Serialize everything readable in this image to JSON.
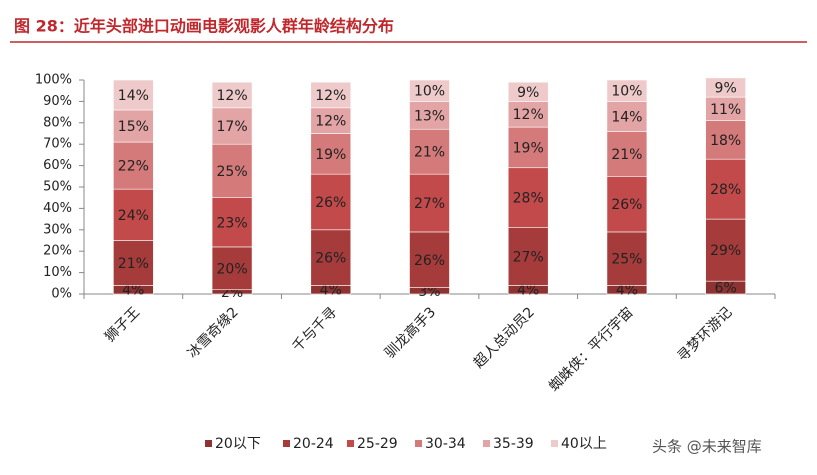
{
  "chart_data": {
    "type": "stacked-bar",
    "title": "图 28：近年头部进口动画电影观影人群年龄结构分布",
    "watermark": "头条 @未来智库",
    "categories": [
      "狮子王",
      "冰雪奇缘2",
      "千与千寻",
      "驯龙高手3",
      "超人总动员2",
      "蜘蛛侠：平行宇宙",
      "寻梦环游记"
    ],
    "series": [
      {
        "name": "20以下",
        "color": "#8e3232",
        "values": [
          4,
          2,
          4,
          3,
          4,
          4,
          6
        ],
        "value_labels": [
          "4%",
          "2%",
          "4%",
          "3%",
          "4%",
          "4%",
          "6%"
        ]
      },
      {
        "name": "20-24",
        "color": "#a63b3b",
        "values": [
          21,
          20,
          26,
          26,
          27,
          25,
          29
        ],
        "value_labels": [
          "21%",
          "20%",
          "26%",
          "26%",
          "27%",
          "25%",
          "29%"
        ]
      },
      {
        "name": "25-29",
        "color": "#c24a4a",
        "values": [
          24,
          23,
          26,
          27,
          28,
          26,
          28
        ],
        "value_labels": [
          "24%",
          "23%",
          "26%",
          "27%",
          "28%",
          "26%",
          "28%"
        ]
      },
      {
        "name": "30-34",
        "color": "#d47a7a",
        "values": [
          22,
          25,
          19,
          21,
          19,
          21,
          18
        ],
        "value_labels": [
          "22%",
          "25%",
          "19%",
          "21%",
          "19%",
          "21%",
          "18%"
        ]
      },
      {
        "name": "35-39",
        "color": "#e2a4a4",
        "values": [
          15,
          17,
          12,
          13,
          12,
          14,
          11
        ],
        "value_labels": [
          "15%",
          "17%",
          "12%",
          "13%",
          "12%",
          "14%",
          "11%"
        ]
      },
      {
        "name": "40以上",
        "color": "#eecaca",
        "values": [
          14,
          12,
          12,
          10,
          9,
          10,
          9
        ],
        "value_labels": [
          "14%",
          "12%",
          "12%",
          "10%",
          "9%",
          "10%",
          "9%"
        ]
      }
    ],
    "ylim": [
      0,
      100
    ],
    "yticks": [
      {
        "value": 0,
        "label": "0%"
      },
      {
        "value": 10,
        "label": "10%"
      },
      {
        "value": 20,
        "label": "20%"
      },
      {
        "value": 30,
        "label": "30%"
      },
      {
        "value": 40,
        "label": "40%"
      },
      {
        "value": 50,
        "label": "50%"
      },
      {
        "value": 60,
        "label": "60%"
      },
      {
        "value": 70,
        "label": "70%"
      },
      {
        "value": 80,
        "label": "80%"
      },
      {
        "value": 90,
        "label": "90%"
      },
      {
        "value": 100,
        "label": "100%"
      }
    ]
  }
}
